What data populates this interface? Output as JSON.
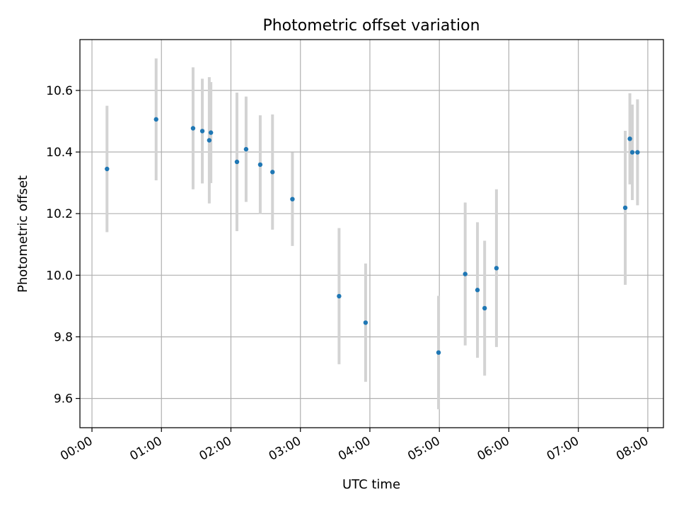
{
  "chart_data": {
    "type": "scatter",
    "title": "Photometric offset variation",
    "xlabel": "UTC time",
    "ylabel": "Photometric offset",
    "x_unit": "minutes",
    "x_ticks": [
      {
        "value": 0,
        "label": "00:00"
      },
      {
        "value": 60,
        "label": "01:00"
      },
      {
        "value": 120,
        "label": "02:00"
      },
      {
        "value": 180,
        "label": "03:00"
      },
      {
        "value": 240,
        "label": "04:00"
      },
      {
        "value": 300,
        "label": "05:00"
      },
      {
        "value": 360,
        "label": "06:00"
      },
      {
        "value": 420,
        "label": "07:00"
      },
      {
        "value": 480,
        "label": "08:00"
      }
    ],
    "y_ticks": [
      {
        "value": 9.6,
        "label": "9.6"
      },
      {
        "value": 9.8,
        "label": "9.8"
      },
      {
        "value": 10.0,
        "label": "10.0"
      },
      {
        "value": 10.2,
        "label": "10.2"
      },
      {
        "value": 10.4,
        "label": "10.4"
      },
      {
        "value": 10.6,
        "label": "10.6"
      }
    ],
    "xlim": [
      -10.4,
      493.5
    ],
    "ylim": [
      9.505,
      10.765
    ],
    "grid": true,
    "marker_color": "#1f77b4",
    "errorbar_color": "#d3d3d3",
    "points": [
      {
        "t": "00:13",
        "x": 13.0,
        "y": 10.345,
        "err": 0.205
      },
      {
        "t": "00:55",
        "x": 55.4,
        "y": 10.506,
        "err": 0.198
      },
      {
        "t": "01:27",
        "x": 87.3,
        "y": 10.477,
        "err": 0.198
      },
      {
        "t": "01:35",
        "x": 95.3,
        "y": 10.468,
        "err": 0.17
      },
      {
        "t": "01:41",
        "x": 101.3,
        "y": 10.438,
        "err": 0.205
      },
      {
        "t": "01:42",
        "x": 102.7,
        "y": 10.463,
        "err": 0.164
      },
      {
        "t": "02:05",
        "x": 125.2,
        "y": 10.368,
        "err": 0.225
      },
      {
        "t": "02:13",
        "x": 133.1,
        "y": 10.409,
        "err": 0.171
      },
      {
        "t": "02:25",
        "x": 145.3,
        "y": 10.359,
        "err": 0.16
      },
      {
        "t": "02:36",
        "x": 155.9,
        "y": 10.335,
        "err": 0.187
      },
      {
        "t": "02:53",
        "x": 173.1,
        "y": 10.247,
        "err": 0.152
      },
      {
        "t": "03:33",
        "x": 213.4,
        "y": 9.932,
        "err": 0.221
      },
      {
        "t": "03:56",
        "x": 236.3,
        "y": 9.846,
        "err": 0.192
      },
      {
        "t": "04:59",
        "x": 299.3,
        "y": 9.749,
        "err": 0.184
      },
      {
        "t": "05:22",
        "x": 322.3,
        "y": 10.004,
        "err": 0.232
      },
      {
        "t": "05:32",
        "x": 332.9,
        "y": 9.952,
        "err": 0.22
      },
      {
        "t": "05:39",
        "x": 339.1,
        "y": 9.893,
        "err": 0.219
      },
      {
        "t": "05:49",
        "x": 349.3,
        "y": 10.023,
        "err": 0.256
      },
      {
        "t": "07:40",
        "x": 460.5,
        "y": 10.219,
        "err": 0.25
      },
      {
        "t": "07:44",
        "x": 464.5,
        "y": 10.443,
        "err": 0.148
      },
      {
        "t": "07:47",
        "x": 466.6,
        "y": 10.399,
        "err": 0.155
      },
      {
        "t": "07:51",
        "x": 471.1,
        "y": 10.399,
        "err": 0.172
      }
    ]
  }
}
